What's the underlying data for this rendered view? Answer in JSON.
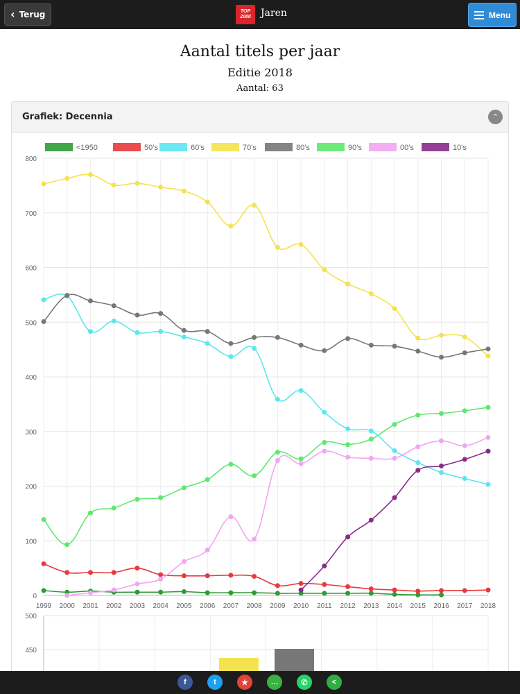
{
  "header": {
    "back_label": "Terug",
    "title": "Jaren",
    "menu_label": "Menu",
    "logo_text_top": "TOP",
    "logo_text_bottom": "2000"
  },
  "page": {
    "title": "Aantal titels per jaar",
    "subtitle": "Editie 2018",
    "count": "Aantal: 63"
  },
  "panel": {
    "title": "Grafiek: Decennia"
  },
  "share": [
    {
      "name": "facebook",
      "glyph": "f",
      "color": "#3b5998"
    },
    {
      "name": "twitter",
      "glyph": "t",
      "color": "#1da1f2"
    },
    {
      "name": "tag",
      "glyph": "★",
      "color": "#e0433a"
    },
    {
      "name": "message",
      "glyph": "…",
      "color": "#3cb043"
    },
    {
      "name": "whatsapp",
      "glyph": "✆",
      "color": "#25d366"
    },
    {
      "name": "share",
      "glyph": "<",
      "color": "#2fae3f"
    }
  ],
  "chart_data": [
    {
      "type": "line",
      "x": [
        1999,
        2000,
        2001,
        2002,
        2003,
        2004,
        2005,
        2006,
        2007,
        2008,
        2009,
        2010,
        2011,
        2012,
        2013,
        2014,
        2015,
        2016,
        2017,
        2018
      ],
      "ylim": [
        0,
        800
      ],
      "yticks": [
        0,
        100,
        200,
        300,
        400,
        500,
        600,
        700,
        800
      ],
      "legend_position": "top",
      "grid": true,
      "series": [
        {
          "name": "<1950",
          "color": "#2e9b35",
          "values": [
            9,
            6,
            8,
            6,
            6,
            6,
            7,
            5,
            5,
            5,
            4,
            4,
            4,
            4,
            4,
            2,
            1,
            1,
            null,
            null
          ]
        },
        {
          "name": "50's",
          "color": "#e8393c",
          "values": [
            58,
            42,
            42,
            42,
            50,
            38,
            36,
            36,
            37,
            35,
            18,
            22,
            20,
            16,
            12,
            10,
            8,
            9,
            9,
            10
          ]
        },
        {
          "name": "60's",
          "color": "#5ce6f2",
          "values": [
            541,
            548,
            483,
            502,
            481,
            483,
            473,
            461,
            437,
            452,
            359,
            375,
            335,
            305,
            301,
            265,
            243,
            225,
            214,
            203
          ]
        },
        {
          "name": "70's",
          "color": "#f4e24e",
          "values": [
            753,
            763,
            770,
            751,
            754,
            747,
            740,
            720,
            676,
            714,
            637,
            642,
            596,
            570,
            552,
            525,
            471,
            476,
            473,
            438
          ]
        },
        {
          "name": "80's",
          "color": "#777777",
          "values": [
            501,
            549,
            539,
            530,
            513,
            516,
            485,
            483,
            461,
            472,
            472,
            458,
            448,
            470,
            458,
            456,
            447,
            436,
            444,
            451
          ]
        },
        {
          "name": "90's",
          "color": "#5ee86f",
          "values": [
            139,
            93,
            151,
            160,
            176,
            179,
            197,
            212,
            240,
            219,
            262,
            250,
            280,
            276,
            286,
            313,
            330,
            333,
            338,
            344
          ]
        },
        {
          "name": "00's",
          "color": "#f1a6f0",
          "values": [
            null,
            0,
            5,
            10,
            21,
            30,
            62,
            83,
            144,
            103,
            247,
            241,
            264,
            253,
            251,
            251,
            272,
            283,
            274,
            289
          ]
        },
        {
          "name": "10's",
          "color": "#8a2b8a",
          "values": [
            null,
            null,
            null,
            null,
            null,
            null,
            null,
            null,
            null,
            null,
            null,
            10,
            54,
            107,
            138,
            179,
            229,
            237,
            249,
            264
          ]
        }
      ]
    },
    {
      "type": "bar",
      "ylim": [
        null,
        500
      ],
      "yticks": [
        450,
        500
      ],
      "grid": true
    }
  ]
}
